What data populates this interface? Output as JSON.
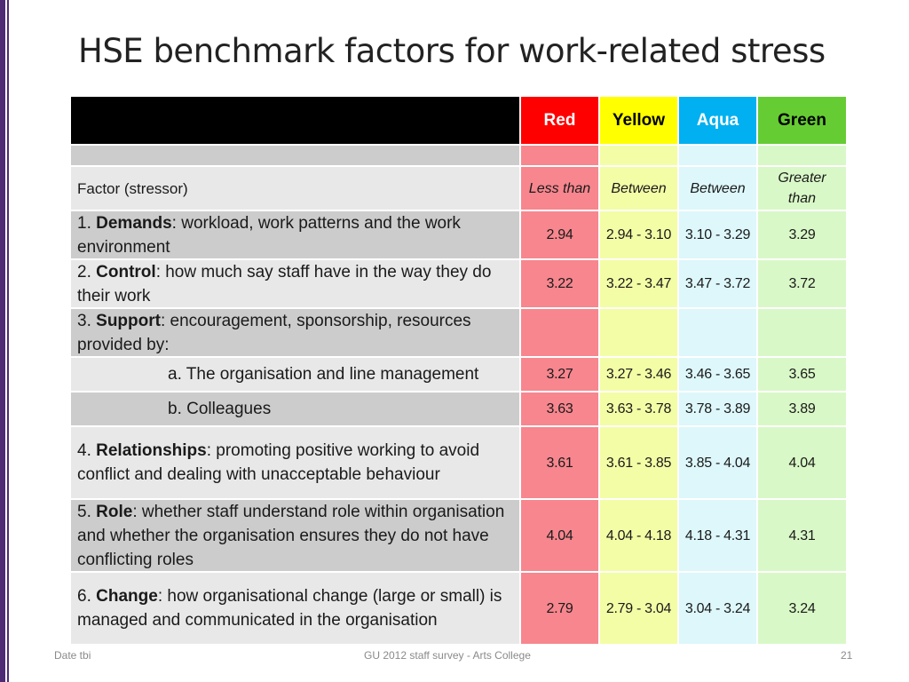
{
  "title": "HSE benchmark factors for work-related stress",
  "columns": {
    "headers": [
      "Red",
      "Yellow",
      "Aqua",
      "Green"
    ],
    "sub_headers": [
      "Less than",
      "Between",
      "Between",
      "Greater than"
    ],
    "factor_header": "Factor (stressor)"
  },
  "rows": [
    {
      "num": "1.",
      "bold": "Demands",
      "rest": ": workload, work patterns and the work environment",
      "values": [
        "2.94",
        "2.94 - 3.10",
        "3.10 - 3.29",
        "3.29"
      ]
    },
    {
      "num": "2.",
      "bold": "Control",
      "rest": ": how much say staff have in the way they do their work",
      "values": [
        "3.22",
        "3.22 - 3.47",
        "3.47 - 3.72",
        "3.72"
      ]
    },
    {
      "num": "3.",
      "bold": "Support",
      "rest": ": encouragement, sponsorship, resources provided by:",
      "values": []
    },
    {
      "label": "a. The organisation and line management",
      "values": [
        "3.27",
        "3.27 - 3.46",
        "3.46 - 3.65",
        "3.65"
      ]
    },
    {
      "label": "b. Colleagues",
      "values": [
        "3.63",
        "3.63 - 3.78",
        "3.78 - 3.89",
        "3.89"
      ]
    },
    {
      "num": "4.",
      "bold": "Relationships",
      "rest": ": promoting positive working to avoid conflict and dealing with unacceptable behaviour",
      "values": [
        "3.61",
        "3.61 - 3.85",
        "3.85 - 4.04",
        "4.04"
      ]
    },
    {
      "num": "5.",
      "bold": "Role",
      "rest": ": whether staff understand role within organisation and whether the organisation ensures they do not have conflicting roles",
      "values": [
        "4.04",
        "4.04 - 4.18",
        "4.18 - 4.31",
        "4.31"
      ]
    },
    {
      "num": "6.",
      "bold": "Change",
      "rest": ": how organisational change (large or small) is managed and communicated in the organisation",
      "values": [
        "2.79",
        "2.79 - 3.04",
        "3.04 - 3.24",
        "3.24"
      ]
    }
  ],
  "footer": {
    "left": "Date tbi",
    "center": "GU 2012 staff survey -  Arts College",
    "right": "21"
  },
  "colors": {
    "accent_bar": "#4e2a74",
    "red": "#ff0000",
    "yellow": "#ffff00",
    "aqua": "#00b0f0",
    "green": "#66cc33"
  }
}
